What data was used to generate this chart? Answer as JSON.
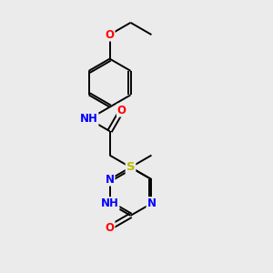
{
  "bg_color": "#ebebeb",
  "atom_colors": {
    "C": "#000000",
    "N": "#0000ff",
    "O": "#ff0000",
    "S": "#b8b800",
    "H": "#404040"
  },
  "bond_color": "#000000",
  "lw": 1.4,
  "fs": 8.5
}
